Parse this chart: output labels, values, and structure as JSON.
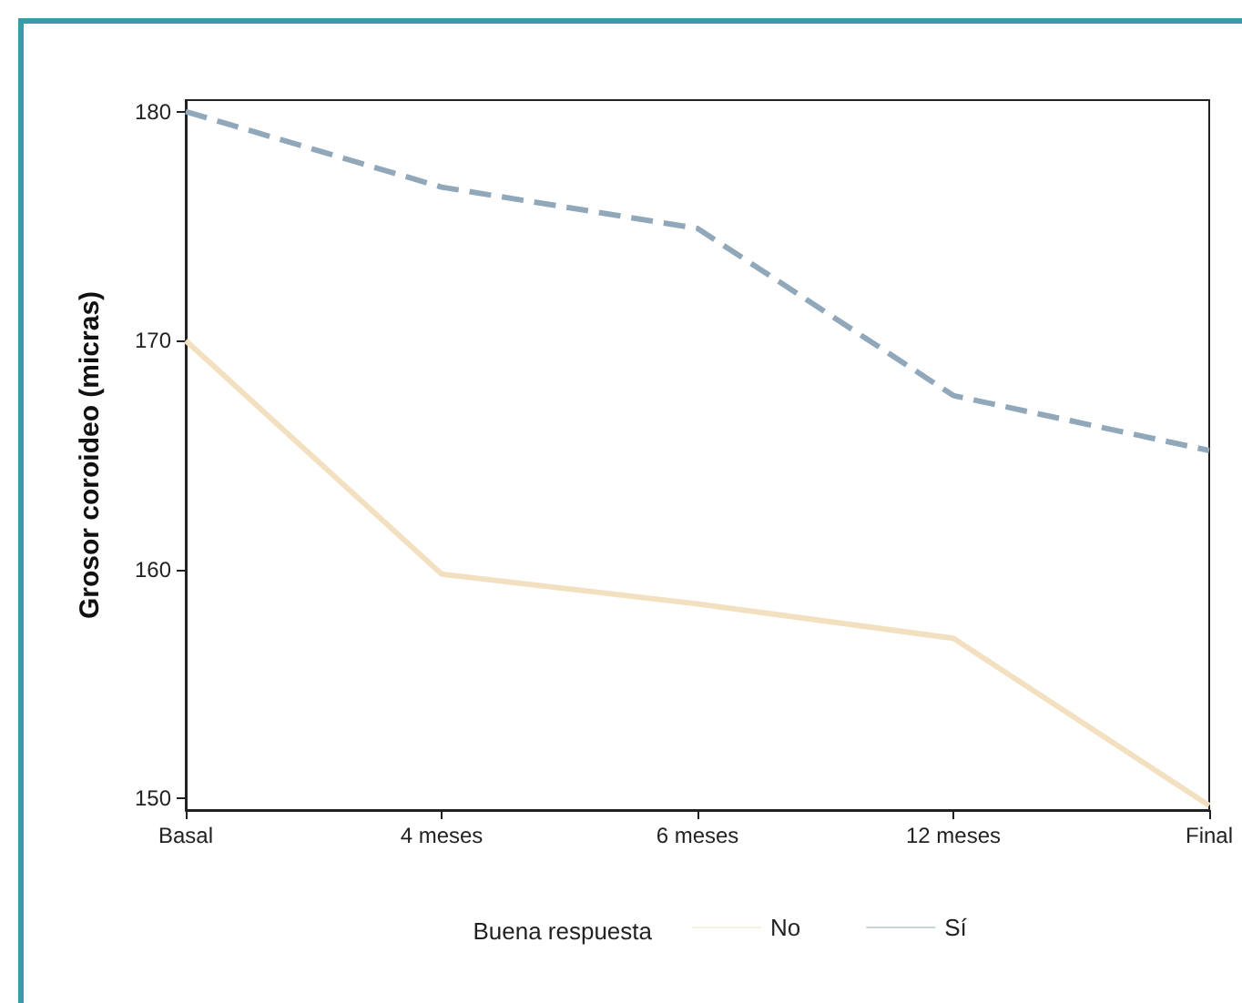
{
  "chart_data": {
    "type": "line",
    "ylabel": "Grosor coroideo (micras)",
    "legend_title": "Buena respuesta",
    "categories": [
      "Basal",
      "4 meses",
      "6 meses",
      "12 meses",
      "Final"
    ],
    "series": [
      {
        "name": "No",
        "color": "#f3e0c0",
        "line_style": "solid",
        "values": [
          170.0,
          159.8,
          158.5,
          157.0,
          149.7
        ]
      },
      {
        "name": "Sí",
        "color": "#91a8ba",
        "line_style": "dashed",
        "values": [
          180.0,
          176.7,
          174.9,
          167.6,
          165.2
        ]
      }
    ],
    "ylim": [
      149.5,
      180.5
    ],
    "yticks": [
      150,
      160,
      170,
      180
    ],
    "grid": false,
    "legend": "bottom",
    "marker": "none"
  }
}
